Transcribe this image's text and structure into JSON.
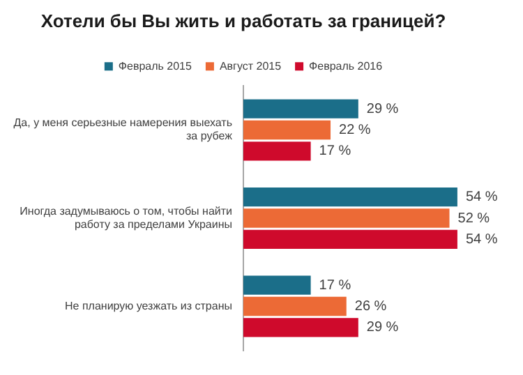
{
  "chart_data": {
    "type": "bar",
    "orientation": "horizontal",
    "title": "Хотели бы Вы жить и работать за границей?",
    "categories": [
      "Да, у меня серьезные намерения выехать за рубеж",
      "Иногда задумываюсь о том, чтобы найти работу за пределами Украины",
      "Не планирую уезжать из страны"
    ],
    "series": [
      {
        "name": "Февраль 2015",
        "color": "#1b6e89",
        "values": [
          29,
          54,
          17
        ],
        "value_labels": [
          "29 %",
          "54 %",
          "17 %"
        ]
      },
      {
        "name": "Август 2015",
        "color": "#ec6a36",
        "values": [
          22,
          52,
          26
        ],
        "value_labels": [
          "22 %",
          "52 %",
          "26 %"
        ]
      },
      {
        "name": "Февраль 2016",
        "color": "#cf0a2c",
        "values": [
          17,
          54,
          29
        ],
        "value_labels": [
          "17 %",
          "54 %",
          "29 %"
        ]
      }
    ],
    "tick_labels": "y",
    "grid": false,
    "legend": "top"
  }
}
